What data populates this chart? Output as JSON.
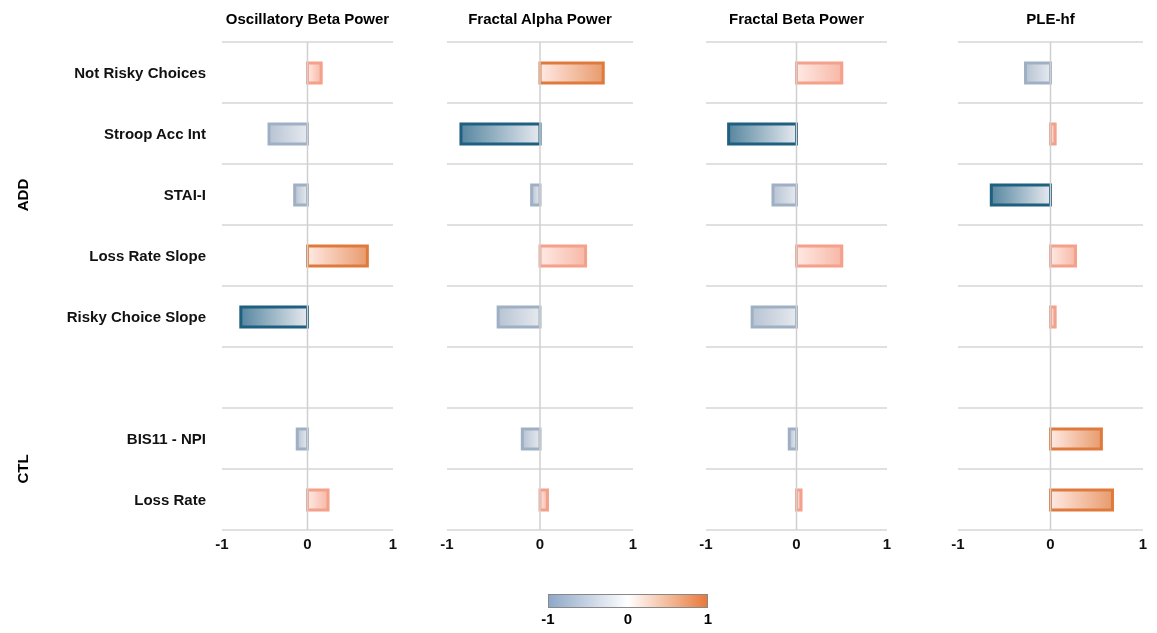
{
  "chart_data": [
    {
      "type": "bar",
      "orientation": "horizontal",
      "title": "Oscillatory Beta Power",
      "categories": [
        "Not Risky Choices",
        "Stroop Acc Int",
        "STAI-I",
        "Loss Rate Slope",
        "Risky Choice Slope",
        null,
        "BIS11 - NPI",
        "Loss Rate"
      ],
      "values": [
        0.16,
        -0.45,
        -0.15,
        0.7,
        -0.78,
        null,
        -0.12,
        0.24
      ],
      "colors": [
        "#f4a08a",
        "#9fb0c4",
        "#9fb0c4",
        "#e07a3c",
        "#1f5f80",
        null,
        "#9fb0c4",
        "#f4a08a"
      ],
      "xlim": [
        -1,
        1
      ],
      "xticks": [
        -1,
        0,
        1
      ],
      "grid": "y",
      "ref_lines": [
        {
          "axis": "x",
          "value": 0,
          "color": "#d0d0d0"
        }
      ],
      "annotations": [
        "ADD",
        "CTL"
      ],
      "clim": [
        -1,
        1
      ],
      "cticks": [
        -1,
        0,
        1
      ]
    },
    {
      "type": "bar",
      "orientation": "horizontal",
      "title": "Fractal Alpha Power",
      "categories": [
        null,
        null,
        null,
        null,
        null,
        null,
        null,
        null
      ],
      "values": [
        0.68,
        -0.85,
        -0.09,
        0.49,
        -0.45,
        null,
        -0.19,
        0.08
      ],
      "colors": [
        "#e07a3c",
        "#1f5f80",
        "#9fb0c4",
        "#f4a08a",
        "#9fb0c4",
        null,
        "#9fb0c4",
        "#f4a08a"
      ],
      "xlim": [
        -1,
        1
      ],
      "xticks": [
        -1,
        0,
        1
      ],
      "grid": "y",
      "ref_lines": [
        {
          "axis": "x",
          "value": 0,
          "color": "#d0d0d0"
        }
      ],
      "tick_labels": "x"
    },
    {
      "type": "bar",
      "orientation": "horizontal",
      "title": "Fractal Beta Power",
      "categories": [
        null,
        null,
        null,
        null,
        null,
        null,
        null,
        null
      ],
      "values": [
        0.5,
        -0.75,
        -0.26,
        0.5,
        -0.49,
        null,
        -0.08,
        0.05
      ],
      "colors": [
        "#f4a08a",
        "#1f5f80",
        "#9fb0c4",
        "#f4a08a",
        "#9fb0c4",
        null,
        "#9fb0c4",
        "#f4a08a"
      ],
      "xlim": [
        -1,
        1
      ],
      "xticks": [
        -1,
        0,
        1
      ],
      "grid": "y",
      "ref_lines": [
        {
          "axis": "x",
          "value": 0,
          "color": "#d0d0d0"
        }
      ],
      "tick_labels": "x"
    },
    {
      "type": "bar",
      "orientation": "horizontal",
      "title": "PLE-hf",
      "categories": [
        null,
        null,
        null,
        null,
        null,
        null,
        null,
        null
      ],
      "values": [
        -0.27,
        0.05,
        -0.64,
        0.27,
        0.05,
        null,
        0.55,
        0.67
      ],
      "colors": [
        "#9fb0c4",
        "#f4a08a",
        "#1f5f80",
        "#f4a08a",
        "#f4a08a",
        null,
        "#e07a3c",
        "#e07a3c"
      ],
      "xlim": [
        -1,
        1
      ],
      "xticks": [
        -1,
        0,
        1
      ],
      "grid": "y",
      "ref_lines": [
        {
          "axis": "x",
          "value": 0,
          "color": "#d0d0d0"
        }
      ],
      "tick_labels": "x"
    }
  ]
}
